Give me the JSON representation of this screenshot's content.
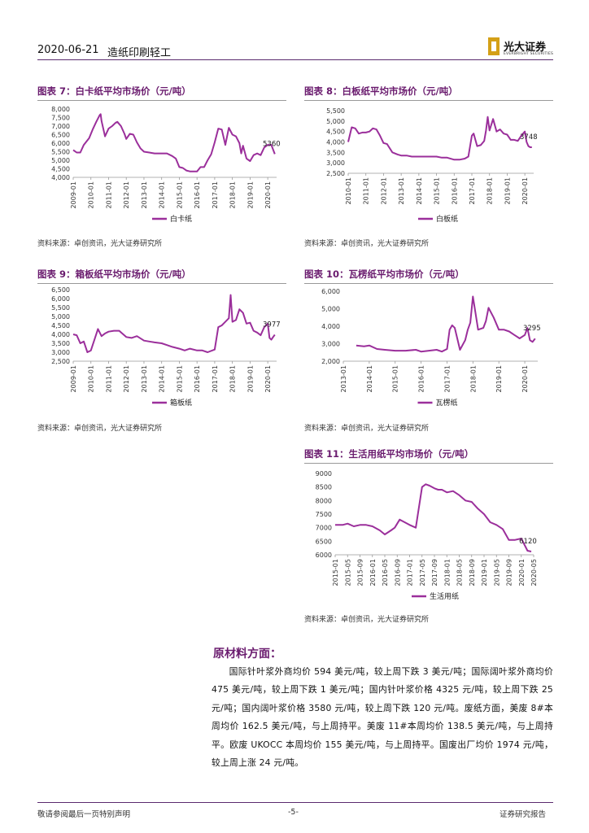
{
  "header": {
    "date": "2020-06-21",
    "sector": "造纸印刷轻工",
    "brand_cn": "光大证券",
    "brand_en": "EVERBRIGHT SECURITIES"
  },
  "colors": {
    "line": "#9b2f9b",
    "accent": "#6a1b6e"
  },
  "charts": [
    {
      "title": "图表 7：白卡纸平均市场价（元/吨）",
      "source": "资料来源：卓创资讯，光大证券研究所",
      "chart_data": {
        "type": "line",
        "series_name": "白卡纸",
        "x_ticks": [
          "2009-01",
          "2010-01",
          "2011-01",
          "2012-01",
          "2013-01",
          "2014-01",
          "2015-01",
          "2016-01",
          "2017-01",
          "2018-01",
          "2019-01",
          "2020-01"
        ],
        "x_range": [
          2009.0,
          2020.5
        ],
        "ylim": [
          4000,
          8000
        ],
        "y_ticks": [
          "4,000",
          "4,500",
          "5,000",
          "5,500",
          "6,000",
          "6,500",
          "7,000",
          "7,500",
          "8,000"
        ],
        "annotation": "5360",
        "x": [
          2009.0,
          2009.2,
          2009.4,
          2009.6,
          2009.9,
          2010.1,
          2010.3,
          2010.5,
          2010.55,
          2010.6,
          2010.8,
          2011.0,
          2011.2,
          2011.4,
          2011.5,
          2011.7,
          2011.9,
          2012.0,
          2012.2,
          2012.4,
          2012.6,
          2012.8,
          2013.0,
          2013.3,
          2013.6,
          2014.0,
          2014.3,
          2014.6,
          2014.8,
          2015.0,
          2015.2,
          2015.4,
          2015.6,
          2015.8,
          2016.0,
          2016.2,
          2016.4,
          2016.6,
          2016.8,
          2017.0,
          2017.2,
          2017.4,
          2017.6,
          2017.8,
          2018.0,
          2018.2,
          2018.4,
          2018.5,
          2018.6,
          2018.8,
          2019.0,
          2019.2,
          2019.4,
          2019.6,
          2019.8,
          2020.0,
          2020.2,
          2020.4
        ],
        "y": [
          5600,
          5450,
          5450,
          5900,
          6300,
          6800,
          7250,
          7650,
          7700,
          7300,
          6400,
          6850,
          7000,
          7200,
          7250,
          7000,
          6550,
          6250,
          6550,
          6500,
          6050,
          5700,
          5500,
          5450,
          5400,
          5400,
          5400,
          5250,
          5100,
          4600,
          4550,
          4400,
          4350,
          4350,
          4350,
          4600,
          4600,
          5000,
          5350,
          6050,
          6850,
          6800,
          5900,
          6900,
          6500,
          6400,
          6000,
          5400,
          5850,
          5100,
          4950,
          5300,
          5400,
          5300,
          5750,
          5900,
          5900,
          5360
        ]
      }
    },
    {
      "title": "图表 8：白板纸平均市场价（元/吨）",
      "source": "资料来源：卓创资讯，光大证券研究所",
      "chart_data": {
        "type": "line",
        "series_name": "白板纸",
        "x_ticks": [
          "2010-01",
          "2011-01",
          "2012-01",
          "2013-01",
          "2014-01",
          "2015-01",
          "2016-01",
          "2017-01",
          "2018-01",
          "2019-01",
          "2020-01"
        ],
        "x_range": [
          2010.0,
          2020.5
        ],
        "ylim": [
          2500,
          5500
        ],
        "y_ticks": [
          "2,500",
          "3,000",
          "3,500",
          "4,000",
          "4,500",
          "5,000",
          "5,500"
        ],
        "annotation": "3748",
        "x": [
          2010.0,
          2010.2,
          2010.4,
          2010.6,
          2010.8,
          2011.0,
          2011.2,
          2011.4,
          2011.6,
          2011.8,
          2012.0,
          2012.2,
          2012.5,
          2012.8,
          2013.0,
          2013.3,
          2013.6,
          2014.0,
          2014.3,
          2014.6,
          2015.0,
          2015.3,
          2015.6,
          2016.0,
          2016.3,
          2016.6,
          2016.8,
          2017.0,
          2017.1,
          2017.3,
          2017.5,
          2017.7,
          2017.8,
          2017.9,
          2018.0,
          2018.2,
          2018.4,
          2018.6,
          2018.8,
          2019.0,
          2019.2,
          2019.4,
          2019.6,
          2019.8,
          2020.0,
          2020.1,
          2020.2,
          2020.3,
          2020.4
        ],
        "y": [
          4000,
          4700,
          4650,
          4400,
          4450,
          4450,
          4500,
          4650,
          4600,
          4300,
          3950,
          3900,
          3500,
          3400,
          3350,
          3350,
          3300,
          3300,
          3300,
          3300,
          3300,
          3250,
          3250,
          3150,
          3150,
          3200,
          3300,
          4300,
          4400,
          3800,
          3850,
          4050,
          4550,
          5200,
          4550,
          5100,
          4500,
          4600,
          4400,
          4350,
          4100,
          4100,
          4050,
          4300,
          4500,
          4000,
          3800,
          3748,
          3748
        ]
      }
    },
    {
      "title": "图表 9：箱板纸平均市场价（元/吨）",
      "source": "资料来源：卓创资讯，光大证券研究所",
      "chart_data": {
        "type": "line",
        "series_name": "箱板纸",
        "x_ticks": [
          "2009-01",
          "2010-01",
          "2011-01",
          "2012-01",
          "2013-01",
          "2014-01",
          "2015-01",
          "2016-01",
          "2017-01",
          "2018-01",
          "2019-01",
          "2020-01"
        ],
        "x_range": [
          2009.0,
          2020.5
        ],
        "ylim": [
          2500,
          6500
        ],
        "y_ticks": [
          "2,500",
          "3,000",
          "3,500",
          "4,000",
          "4,500",
          "5,000",
          "5,500",
          "6,000",
          "6,500"
        ],
        "annotation": "3977",
        "x": [
          2009.0,
          2009.2,
          2009.4,
          2009.6,
          2009.8,
          2010.0,
          2010.2,
          2010.4,
          2010.6,
          2010.8,
          2011.0,
          2011.3,
          2011.6,
          2012.0,
          2012.3,
          2012.6,
          2013.0,
          2013.3,
          2013.6,
          2014.0,
          2014.3,
          2014.6,
          2015.0,
          2015.3,
          2015.6,
          2016.0,
          2016.3,
          2016.6,
          2017.0,
          2017.2,
          2017.4,
          2017.6,
          2017.8,
          2017.9,
          2018.0,
          2018.2,
          2018.4,
          2018.6,
          2018.8,
          2019.0,
          2019.2,
          2019.4,
          2019.6,
          2019.8,
          2020.0,
          2020.1,
          2020.2,
          2020.3,
          2020.4
        ],
        "y": [
          4000,
          3950,
          3500,
          3600,
          3000,
          3100,
          3700,
          4300,
          3900,
          4050,
          4150,
          4200,
          4200,
          3850,
          3800,
          3900,
          3650,
          3600,
          3550,
          3500,
          3400,
          3300,
          3200,
          3100,
          3200,
          3100,
          3100,
          3000,
          3150,
          4400,
          4500,
          4700,
          4900,
          6200,
          4700,
          4800,
          5400,
          5200,
          4600,
          4650,
          4200,
          4100,
          3950,
          4400,
          4600,
          3800,
          3700,
          3850,
          3977
        ]
      }
    },
    {
      "title": "图表 10：瓦楞纸平均市场价（元/吨）",
      "source": "资料来源：卓创资讯，光大证券研究所",
      "chart_data": {
        "type": "line",
        "series_name": "瓦楞纸",
        "x_ticks": [
          "2013-01",
          "2014-01",
          "2015-01",
          "2016-01",
          "2017-01",
          "2018-01",
          "2019-01",
          "2020-01"
        ],
        "x_range": [
          2013.0,
          2020.5
        ],
        "ylim": [
          2000,
          6000
        ],
        "y_ticks": [
          "2,000",
          "3,000",
          "4,000",
          "5,000",
          "6,000"
        ],
        "annotation": "3295",
        "x": [
          2013.5,
          2013.8,
          2014.0,
          2014.3,
          2014.6,
          2015.0,
          2015.4,
          2015.8,
          2016.0,
          2016.3,
          2016.6,
          2016.8,
          2017.0,
          2017.1,
          2017.2,
          2017.3,
          2017.5,
          2017.7,
          2017.8,
          2017.9,
          2018.0,
          2018.2,
          2018.4,
          2018.5,
          2018.6,
          2018.8,
          2019.0,
          2019.2,
          2019.4,
          2019.6,
          2019.8,
          2020.0,
          2020.1,
          2020.2,
          2020.3,
          2020.4
        ],
        "y": [
          2900,
          2850,
          2900,
          2700,
          2650,
          2600,
          2600,
          2650,
          2550,
          2600,
          2650,
          2550,
          2700,
          3800,
          4050,
          3900,
          2650,
          3200,
          3800,
          4200,
          5700,
          3800,
          3900,
          4300,
          5050,
          4500,
          3800,
          3800,
          3700,
          3500,
          3300,
          3500,
          3900,
          3200,
          3100,
          3295
        ]
      }
    },
    {
      "title": "图表 11：生活用纸平均市场价（元/吨）",
      "source": "资料来源：卓创资讯，光大证券研究所",
      "chart_data": {
        "type": "line",
        "series_name": "生活用纸",
        "x_ticks": [
          "2015-01",
          "2015-05",
          "2015-09",
          "2016-01",
          "2016-05",
          "2016-09",
          "2017-01",
          "2017-05",
          "2017-09",
          "2018-01",
          "2018-05",
          "2018-09",
          "2019-01",
          "2019-05",
          "2019-09",
          "2020-01",
          "2020-05"
        ],
        "x_range": [
          0,
          16
        ],
        "ylim": [
          6000,
          9000
        ],
        "y_ticks": [
          "6000",
          "6500",
          "7000",
          "7500",
          "8000",
          "8500",
          "9000"
        ],
        "annotation": "6120",
        "x": [
          0,
          0.6,
          1.0,
          1.5,
          2.0,
          2.5,
          3.0,
          3.6,
          4.0,
          4.5,
          4.8,
          5.2,
          5.6,
          6.0,
          6.5,
          7.0,
          7.3,
          7.6,
          8.0,
          8.3,
          8.6,
          9.0,
          9.5,
          10.0,
          10.5,
          11.0,
          11.5,
          12.0,
          12.5,
          13.0,
          13.5,
          14.0,
          14.5,
          15.0,
          15.5,
          15.8
        ],
        "y": [
          7100,
          7100,
          7150,
          7050,
          7100,
          7100,
          7050,
          6900,
          6750,
          6900,
          7000,
          7300,
          7200,
          7100,
          7000,
          8500,
          8600,
          8550,
          8450,
          8400,
          8400,
          8300,
          8350,
          8200,
          8000,
          7950,
          7700,
          7500,
          7200,
          7100,
          6950,
          6550,
          6550,
          6600,
          6150,
          6120
        ]
      }
    }
  ],
  "section": {
    "heading": "原材料方面：",
    "paragraph": "国际针叶浆外商均价 594 美元/吨，较上周下跌 3 美元/吨；国际阔叶浆外商均价 475 美元/吨，较上周下跌 1 美元/吨；国内针叶浆价格 4325 元/吨，较上周下跌 25 元/吨；国内阔叶浆价格 3580 元/吨，较上周下跌 120 元/吨。废纸方面，美废 8#本周均价 162.5 美元/吨，与上周持平。美废 11#本周均价 138.5 美元/吨，与上周持平。欧废 UKOCC 本周均价 155 美元/吨，与上周持平。国废出厂均价 1974 元/吨，较上周上涨 24 元/吨。"
  },
  "footer": {
    "left": "敬请参阅最后一页特别声明",
    "page": "-5-",
    "right": "证券研究报告"
  }
}
